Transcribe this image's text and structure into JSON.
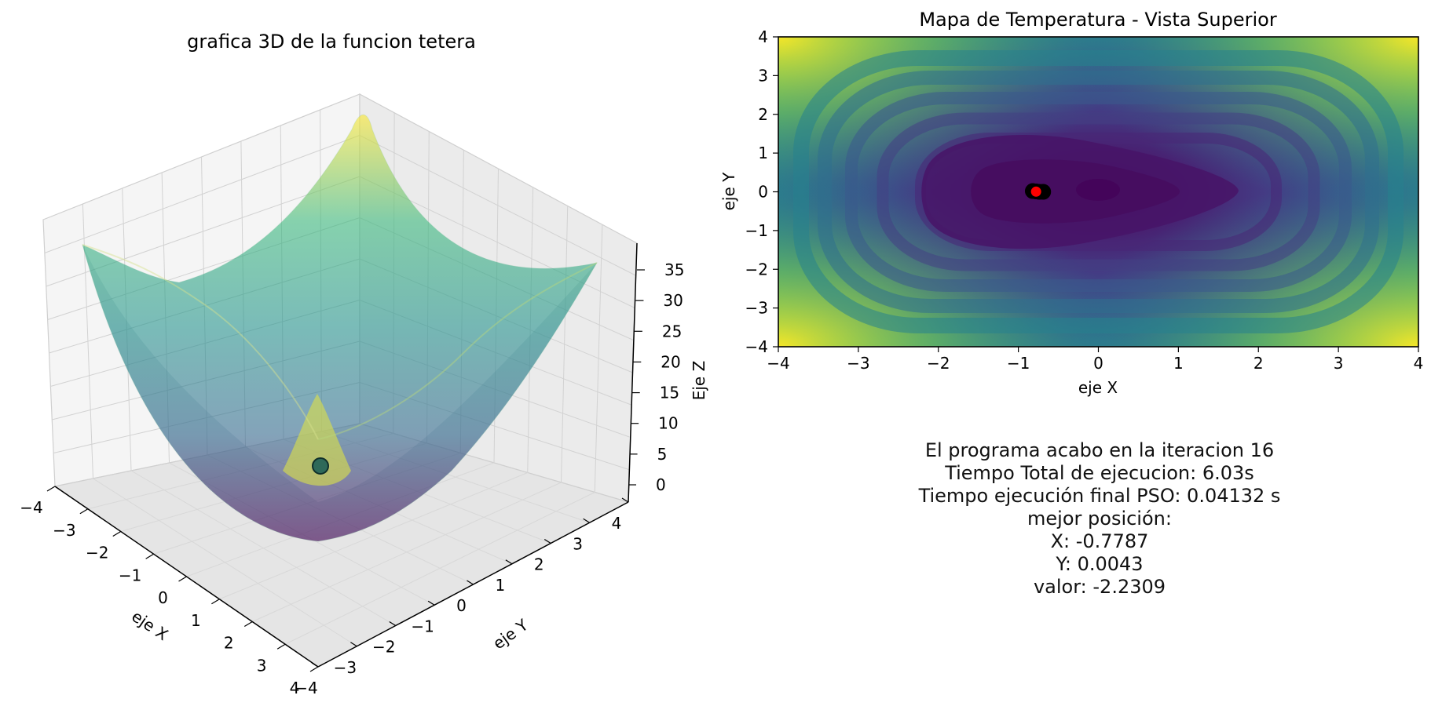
{
  "chart_data": [
    {
      "type": "surface",
      "title": "grafica 3D de la funcion tetera",
      "xlabel": "eje X",
      "ylabel": "eje Y",
      "zlabel": "Eje Z",
      "xlim": [
        -4,
        4
      ],
      "ylim": [
        -4,
        4
      ],
      "zlim": [
        -2,
        38
      ],
      "x_ticks": [
        "−4",
        "−3",
        "−2",
        "−1",
        "0",
        "1",
        "2",
        "3",
        "4"
      ],
      "y_ticks": [
        "−4",
        "−3",
        "−2",
        "−1",
        "0",
        "1",
        "2",
        "3",
        "4"
      ],
      "z_ticks": [
        "0",
        "5",
        "10",
        "15",
        "20",
        "25",
        "30",
        "35"
      ],
      "colormap": "viridis",
      "alpha": 0.6,
      "markers": [
        {
          "x": -0.7787,
          "y": 0.0043,
          "z": -2.2309,
          "color": "#1f5f57"
        }
      ],
      "grid": true
    },
    {
      "type": "heatmap",
      "title": "Mapa de Temperatura - Vista Superior",
      "xlabel": "eje X",
      "ylabel": "eje Y",
      "xlim": [
        -4,
        4
      ],
      "ylim": [
        -4,
        4
      ],
      "x_ticks": [
        "−4",
        "−3",
        "−2",
        "−1",
        "0",
        "1",
        "2",
        "3",
        "4"
      ],
      "y_ticks": [
        "4",
        "3",
        "2",
        "1",
        "0",
        "−1",
        "−2",
        "−3",
        "−4"
      ],
      "colormap": "viridis",
      "contour_levels": 20,
      "points": [
        {
          "x": -0.82,
          "y": 0.02,
          "color": "#000000"
        },
        {
          "x": -0.78,
          "y": 0.01,
          "color": "#000000"
        },
        {
          "x": -0.74,
          "y": 0.0,
          "color": "#000000"
        },
        {
          "x": -0.69,
          "y": 0.0,
          "color": "#000000"
        },
        {
          "x": -0.7787,
          "y": 0.0043,
          "color": "#ff0000"
        }
      ]
    }
  ],
  "summary": {
    "iteration_text": "El programa acabo en la iteracion 16",
    "total_time_text": "Tiempo Total de ejecucion: 6.03s",
    "pso_time_text": "Tiempo ejecución final PSO: 0.04132 s",
    "best_position_label": "mejor posición:",
    "best_x_text": "X: -0.7787",
    "best_y_text": "Y: 0.0043",
    "best_value_text": "valor: -2.2309"
  }
}
